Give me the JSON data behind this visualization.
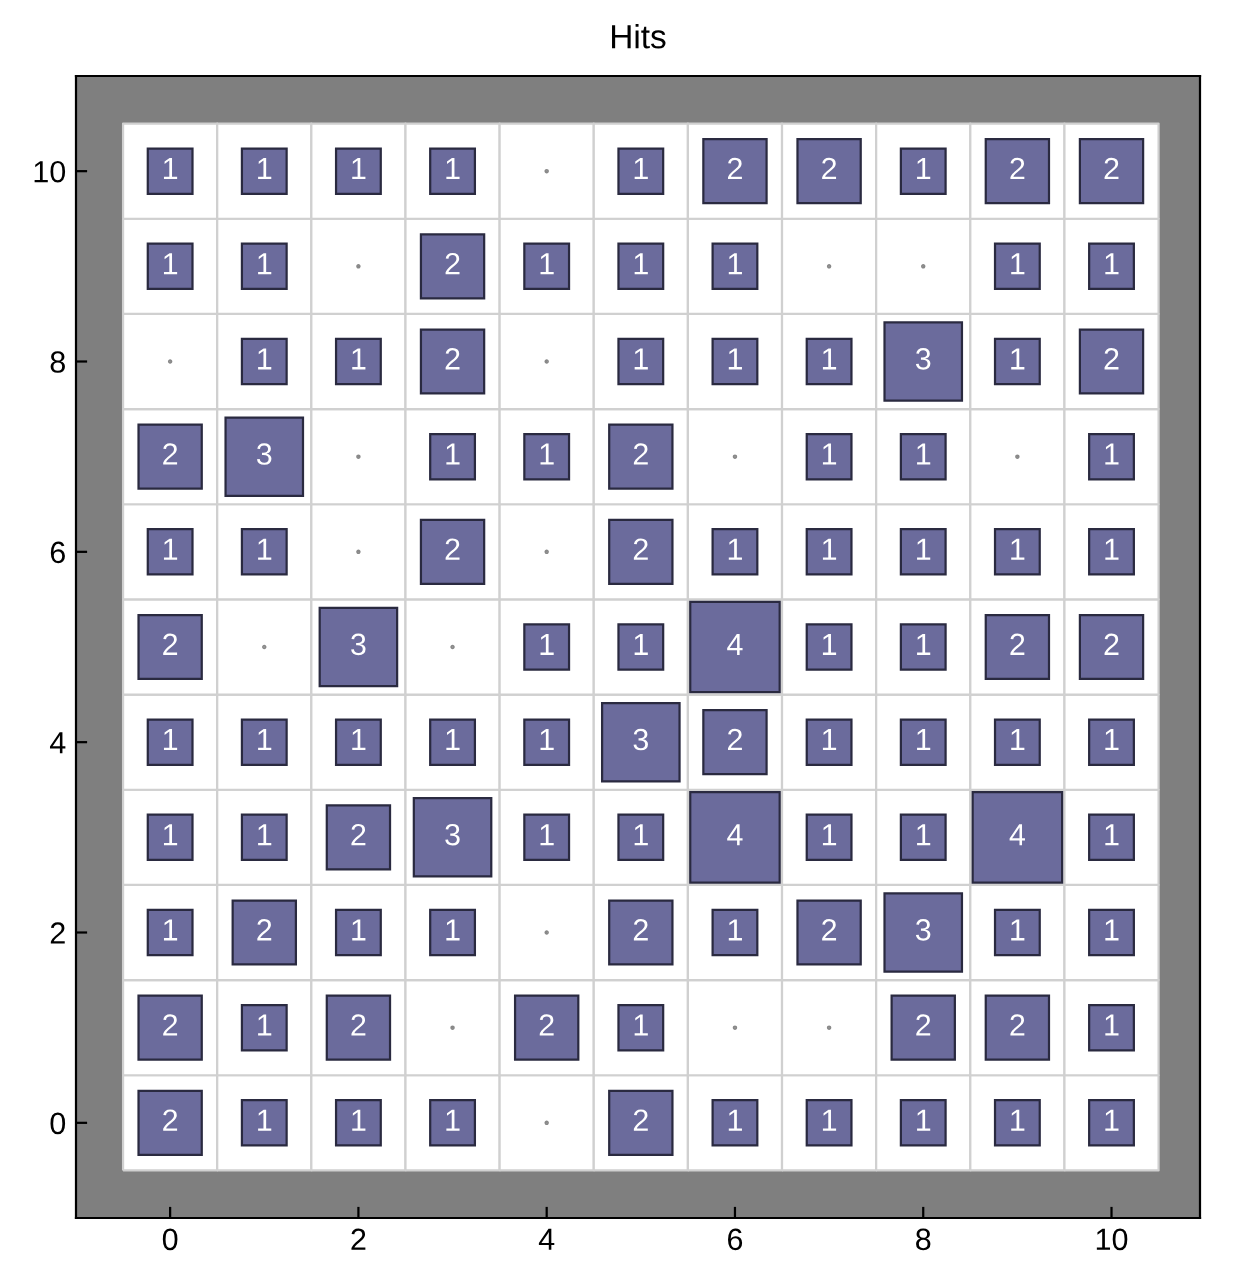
{
  "chart_data": {
    "type": "heatmap",
    "title": "Hits",
    "color": "#6b6b9c",
    "categories": [
      "0",
      null,
      "2",
      null,
      "4",
      null,
      "6",
      null,
      "8",
      null,
      "10"
    ],
    "y_categories": [
      "10",
      null,
      "8",
      null,
      "6",
      null,
      "4",
      null,
      "2",
      null,
      "0"
    ],
    "cells": [
      [
        1,
        1,
        1,
        1,
        null,
        1,
        2,
        2,
        1,
        2,
        2
      ],
      [
        1,
        1,
        null,
        2,
        1,
        1,
        1,
        null,
        null,
        1,
        1
      ],
      [
        null,
        1,
        1,
        2,
        null,
        1,
        1,
        1,
        3,
        1,
        2
      ],
      [
        2,
        3,
        null,
        1,
        1,
        2,
        null,
        1,
        1,
        null,
        1
      ],
      [
        1,
        1,
        null,
        2,
        null,
        2,
        1,
        1,
        1,
        1,
        1
      ],
      [
        2,
        null,
        3,
        null,
        1,
        1,
        4,
        1,
        1,
        2,
        2
      ],
      [
        1,
        1,
        1,
        1,
        1,
        3,
        2,
        1,
        1,
        1,
        1
      ],
      [
        1,
        1,
        2,
        3,
        1,
        1,
        4,
        1,
        1,
        4,
        1
      ],
      [
        1,
        2,
        1,
        1,
        null,
        2,
        1,
        2,
        3,
        1,
        1
      ],
      [
        2,
        1,
        2,
        null,
        2,
        1,
        null,
        null,
        2,
        2,
        1
      ],
      [
        2,
        1,
        1,
        1,
        null,
        2,
        1,
        1,
        1,
        1,
        1
      ]
    ],
    "cell_labels": [
      [
        "1",
        "1",
        "1",
        "1",
        null,
        "1",
        "2",
        "2",
        "1",
        "2",
        "2"
      ],
      [
        "1",
        "1",
        null,
        "2",
        "1",
        "1",
        "1",
        null,
        null,
        "1",
        "1"
      ],
      [
        null,
        "1",
        "1",
        "2",
        null,
        "1",
        "1",
        "1",
        "3",
        "1",
        "2"
      ],
      [
        "2",
        "3",
        null,
        "1",
        "1",
        "2",
        null,
        "1",
        "1",
        null,
        "1"
      ],
      [
        "1",
        "1",
        null,
        "2",
        null,
        "2",
        "1",
        "1",
        "1",
        "1",
        "1"
      ],
      [
        "2",
        null,
        "3",
        null,
        "1",
        "1",
        "4",
        "1",
        "1",
        "2",
        "2"
      ],
      [
        "1",
        "1",
        "1",
        "1",
        "1",
        "3",
        "2",
        "1",
        "1",
        "1",
        "1"
      ],
      [
        "1",
        "1",
        "2",
        "3",
        "1",
        "1",
        "4",
        "1",
        "1",
        "4",
        "1"
      ],
      [
        "1",
        "2",
        "1",
        "1",
        null,
        "2",
        "1",
        "2",
        "3",
        "1",
        "1"
      ],
      [
        "2",
        "1",
        "2",
        null,
        "2",
        "1",
        null,
        null,
        "2",
        "2",
        "1"
      ],
      [
        "2",
        "1",
        "1",
        "1",
        null,
        "2",
        "1",
        "1",
        "1",
        "1",
        "1"
      ]
    ]
  }
}
